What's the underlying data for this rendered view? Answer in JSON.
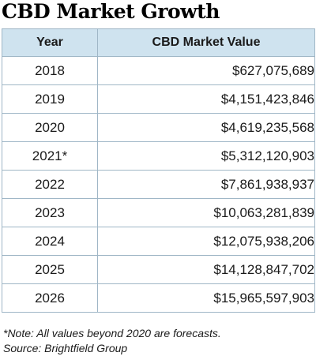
{
  "title": "CBD Market Growth",
  "columns": [
    "Year",
    "CBD Market Value"
  ],
  "rows": [
    {
      "year": "2018",
      "value": "$627,075,689"
    },
    {
      "year": "2019",
      "value": "$4,151,423,846"
    },
    {
      "year": "2020",
      "value": "$4,619,235,568"
    },
    {
      "year": "2021*",
      "value": "$5,312,120,903"
    },
    {
      "year": "2022",
      "value": "$7,861,938,937"
    },
    {
      "year": "2023",
      "value": "$10,063,281,839"
    },
    {
      "year": "2024",
      "value": "$12,075,938,206"
    },
    {
      "year": "2025",
      "value": "$14,128,847,702"
    },
    {
      "year": "2026",
      "value": "$15,965,597,903"
    }
  ],
  "footnote": {
    "note": "*Note: All values beyond 2020 are forecasts.",
    "source": "Source: Brightfield Group"
  },
  "colors": {
    "header_bg": "#cfe3ef",
    "border": "#9fb6c6",
    "text": "#1a1a1a"
  },
  "chart_data": {
    "type": "table",
    "title": "CBD Market Growth",
    "columns": [
      "Year",
      "CBD Market Value"
    ],
    "categories": [
      "2018",
      "2019",
      "2020",
      "2021*",
      "2022",
      "2023",
      "2024",
      "2025",
      "2026"
    ],
    "values": [
      627075689,
      4151423846,
      4619235568,
      5312120903,
      7861938937,
      10063281839,
      12075938206,
      14128847702,
      15965597903
    ]
  }
}
